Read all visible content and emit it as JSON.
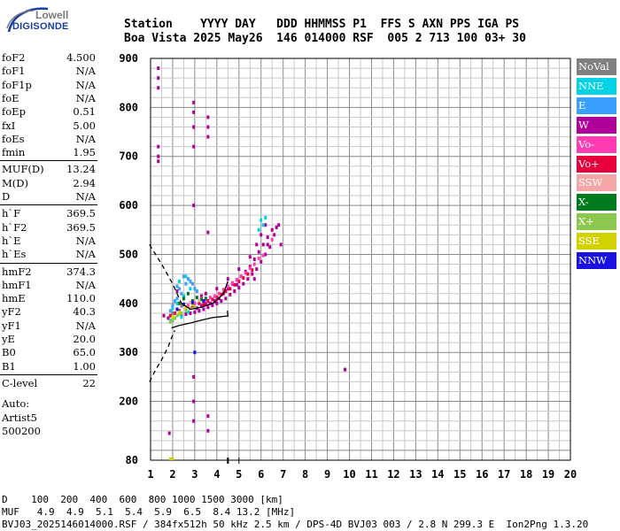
{
  "logo": {
    "line1": "Lowell",
    "line2": "DIGISONDE"
  },
  "header": {
    "line1": "Station    YYYY DAY   DDD HHMMSS P1  FFS S AXN PPS IGA PS",
    "line2": "Boa Vista 2025 May26  146 014000 RSF  005 2 713 100 03+ 30"
  },
  "params": [
    {
      "label": "foF2",
      "value": "4.500"
    },
    {
      "label": "foF1",
      "value": "N/A"
    },
    {
      "label": "foF1p",
      "value": "N/A"
    },
    {
      "label": "foE",
      "value": "N/A"
    },
    {
      "label": "foEp",
      "value": "0.51"
    },
    {
      "label": "fxI",
      "value": "5.00"
    },
    {
      "label": "foEs",
      "value": "N/A"
    },
    {
      "label": "fmin",
      "value": "1.95"
    },
    {
      "label": "MUF(D)",
      "value": "13.24"
    },
    {
      "label": "M(D)",
      "value": "2.94"
    },
    {
      "label": "D",
      "value": "N/A"
    },
    {
      "label": "h`F",
      "value": "369.5"
    },
    {
      "label": "h`F2",
      "value": "369.5"
    },
    {
      "label": "h`E",
      "value": "N/A"
    },
    {
      "label": "h`Es",
      "value": "N/A"
    },
    {
      "label": "hmF2",
      "value": "374.3"
    },
    {
      "label": "hmF1",
      "value": "N/A"
    },
    {
      "label": "hmE",
      "value": "110.0"
    },
    {
      "label": "yF2",
      "value": "40.3"
    },
    {
      "label": "yF1",
      "value": "N/A"
    },
    {
      "label": "yE",
      "value": "20.0"
    },
    {
      "label": "B0",
      "value": "65.0"
    },
    {
      "label": "B1",
      "value": "1.00"
    },
    {
      "label": "C-level",
      "value": "22"
    }
  ],
  "autoscale": {
    "line1": "Auto:",
    "line2": "Artist5",
    "line3": "500200"
  },
  "legend": [
    {
      "label": "NoVal",
      "color": "#808080",
      "text": "#ffffff"
    },
    {
      "label": "NNE",
      "color": "#00d2e6",
      "text": "#ffffff"
    },
    {
      "label": "E",
      "color": "#3aa0ff",
      "text": "#ffffff"
    },
    {
      "label": "W",
      "color": "#b0009a",
      "text": "#ffffff"
    },
    {
      "label": "Vo-",
      "color": "#ff3cb4",
      "text": "#ffffff"
    },
    {
      "label": "Vo+",
      "color": "#e8003c",
      "text": "#ffffff"
    },
    {
      "label": "SSW",
      "color": "#f4a6a6",
      "text": "#ffffff"
    },
    {
      "label": "X-",
      "color": "#007a1e",
      "text": "#ffffff"
    },
    {
      "label": "X+",
      "color": "#8cc850",
      "text": "#ffffff"
    },
    {
      "label": "SSE",
      "color": "#d2d200",
      "text": "#ffffff"
    },
    {
      "label": "NNW",
      "color": "#1a10e0",
      "text": "#ffffff"
    }
  ],
  "footer": {
    "line1": "D    100  200  400  600  800 1000 1500 3000 [km]",
    "line2": "MUF   4.9  4.9  5.1  5.4  5.9  6.5  8.4 13.2 [MHz]",
    "line3": "BVJ03_2025146014000.RSF / 384fx512h 50 kHz 2.5 km / DPS-4D BVJ03 003 / 2.8 N 299.3 E  Ion2Png 1.3.20"
  },
  "chart_data": {
    "type": "scatter",
    "title": "",
    "xlabel": "",
    "ylabel": "",
    "xlim": [
      1,
      20
    ],
    "ylim": [
      80,
      900
    ],
    "x_ticks": [
      "1",
      "2",
      "3",
      "4",
      "5",
      "6",
      "7",
      "8",
      "9",
      "10",
      "11",
      "12",
      "13",
      "14",
      "15",
      "16",
      "17",
      "18",
      "19",
      "20"
    ],
    "y_ticks": [
      "80",
      "200",
      "300",
      "400",
      "500",
      "600",
      "700",
      "800",
      "900"
    ],
    "grid": true,
    "grid_minor_x": 0.5,
    "grid_minor_y": 20,
    "markers": {
      "foF2_freq": 4.5,
      "fxI_freq": 5.0
    },
    "profile_solid": [
      [
        1.95,
        350
      ],
      [
        2.3,
        355
      ],
      [
        2.8,
        360
      ],
      [
        3.3,
        366
      ],
      [
        3.8,
        371
      ],
      [
        4.2,
        373
      ],
      [
        4.45,
        374.3
      ],
      [
        4.5,
        374.3
      ],
      [
        4.48,
        385
      ]
    ],
    "profile_dashed": [
      [
        0.95,
        240
      ],
      [
        1.2,
        262
      ],
      [
        1.5,
        285
      ],
      [
        1.8,
        312
      ],
      [
        1.95,
        330
      ],
      [
        2.1,
        345
      ]
    ],
    "trace_dashed": [
      [
        0.95,
        520
      ],
      [
        1.5,
        480
      ],
      [
        2.0,
        440
      ],
      [
        2.4,
        400
      ]
    ],
    "trace_solid": [
      [
        2.4,
        400
      ],
      [
        2.8,
        388
      ],
      [
        3.3,
        392
      ],
      [
        3.9,
        402
      ],
      [
        4.3,
        420
      ],
      [
        4.5,
        445
      ]
    ],
    "series": [
      {
        "name": "W",
        "color": "#b0009a",
        "points": [
          [
            3.1,
            390
          ],
          [
            3.3,
            395
          ],
          [
            3.5,
            398
          ],
          [
            3.7,
            400
          ],
          [
            3.9,
            405
          ],
          [
            4.1,
            410
          ],
          [
            4.3,
            420
          ],
          [
            4.5,
            430
          ],
          [
            4.7,
            440
          ],
          [
            4.9,
            448
          ],
          [
            5.1,
            455
          ],
          [
            5.3,
            465
          ],
          [
            5.5,
            475
          ],
          [
            5.7,
            490
          ],
          [
            5.9,
            505
          ],
          [
            6.1,
            520
          ],
          [
            6.3,
            535
          ],
          [
            6.5,
            550
          ],
          [
            6.6,
            540
          ],
          [
            6.4,
            515
          ],
          [
            6.2,
            500
          ],
          [
            6.0,
            485
          ],
          [
            5.8,
            470
          ],
          [
            5.6,
            460
          ],
          [
            5.4,
            450
          ],
          [
            5.2,
            440
          ],
          [
            5.0,
            432
          ],
          [
            4.8,
            425
          ],
          [
            4.6,
            418
          ],
          [
            4.4,
            410
          ],
          [
            4.2,
            405
          ],
          [
            4.0,
            400
          ],
          [
            3.8,
            396
          ],
          [
            3.6,
            392
          ],
          [
            3.4,
            388
          ],
          [
            3.2,
            385
          ],
          [
            3.0,
            382
          ],
          [
            2.8,
            380
          ],
          [
            2.6,
            378
          ],
          [
            2.4,
            376
          ],
          [
            6.7,
            555
          ],
          [
            6.8,
            560
          ],
          [
            6.0,
            540
          ],
          [
            6.2,
            560
          ],
          [
            5.8,
            520
          ],
          [
            5.5,
            495
          ],
          [
            5.0,
            470
          ],
          [
            4.5,
            450
          ],
          [
            4.0,
            430
          ],
          [
            3.5,
            420
          ],
          [
            1.35,
            880
          ],
          [
            1.35,
            860
          ],
          [
            1.35,
            840
          ],
          [
            1.35,
            720
          ],
          [
            1.35,
            700
          ],
          [
            1.35,
            690
          ],
          [
            2.95,
            810
          ],
          [
            2.95,
            790
          ],
          [
            2.95,
            760
          ],
          [
            2.95,
            720
          ],
          [
            3.6,
            780
          ],
          [
            3.6,
            760
          ],
          [
            3.6,
            740
          ],
          [
            2.95,
            600
          ],
          [
            2.95,
            250
          ],
          [
            2.95,
            200
          ],
          [
            2.95,
            160
          ],
          [
            3.6,
            140
          ],
          [
            3.6,
            170
          ],
          [
            9.8,
            265
          ],
          [
            1.85,
            135
          ],
          [
            3.6,
            545
          ],
          [
            2.2,
            425
          ],
          [
            1.6,
            375
          ],
          [
            1.8,
            370
          ],
          [
            5.7,
            450
          ],
          [
            6.3,
            520
          ],
          [
            6.9,
            520
          ],
          [
            4.9,
            438
          ],
          [
            3.3,
            415
          ]
        ]
      },
      {
        "name": "Vo+",
        "color": "#e8003c",
        "points": [
          [
            3.2,
            400
          ],
          [
            3.6,
            405
          ],
          [
            4.0,
            412
          ],
          [
            4.4,
            425
          ],
          [
            4.8,
            438
          ],
          [
            5.2,
            452
          ],
          [
            5.6,
            468
          ],
          [
            2.6,
            390
          ],
          [
            2.9,
            395
          ],
          [
            3.4,
            398
          ],
          [
            3.8,
            408
          ],
          [
            4.2,
            418
          ],
          [
            4.6,
            430
          ],
          [
            5.0,
            445
          ],
          [
            5.4,
            460
          ],
          [
            2.3,
            385
          ],
          [
            2.1,
            380
          ],
          [
            1.9,
            375
          ]
        ]
      },
      {
        "name": "Vo-",
        "color": "#ff3cb4",
        "points": [
          [
            3.3,
            410
          ],
          [
            3.7,
            412
          ],
          [
            4.1,
            420
          ],
          [
            4.5,
            435
          ],
          [
            4.9,
            448
          ],
          [
            5.3,
            462
          ],
          [
            5.7,
            480
          ],
          [
            6.1,
            498
          ],
          [
            6.5,
            530
          ],
          [
            2.7,
            395
          ],
          [
            3.0,
            400
          ],
          [
            3.5,
            405
          ],
          [
            3.9,
            415
          ],
          [
            4.3,
            428
          ],
          [
            4.7,
            442
          ],
          [
            5.1,
            455
          ],
          [
            5.5,
            472
          ],
          [
            5.9,
            492
          ]
        ]
      },
      {
        "name": "NNE",
        "color": "#00d2e6",
        "points": [
          [
            6.0,
            570
          ],
          [
            6.1,
            560
          ],
          [
            5.9,
            550
          ],
          [
            6.2,
            575
          ],
          [
            2.0,
            390
          ],
          [
            2.2,
            400
          ],
          [
            2.5,
            415
          ],
          [
            2.8,
            430
          ],
          [
            2.3,
            445
          ],
          [
            2.6,
            455
          ],
          [
            2.1,
            370
          ],
          [
            1.9,
            365
          ],
          [
            2.4,
            372
          ],
          [
            2.7,
            382
          ]
        ]
      },
      {
        "name": "E",
        "color": "#3aa0ff",
        "points": [
          [
            2.0,
            395
          ],
          [
            2.2,
            410
          ],
          [
            2.4,
            420
          ],
          [
            2.6,
            440
          ],
          [
            2.8,
            445
          ],
          [
            3.0,
            430
          ],
          [
            2.5,
            455
          ],
          [
            2.3,
            430
          ],
          [
            2.1,
            405
          ],
          [
            1.9,
            385
          ],
          [
            2.7,
            450
          ],
          [
            2.9,
            440
          ],
          [
            3.1,
            425
          ],
          [
            2.2,
            435
          ]
        ]
      },
      {
        "name": "X-",
        "color": "#007a1e",
        "points": [
          [
            2.5,
            410
          ],
          [
            2.9,
            405
          ],
          [
            3.3,
            408
          ],
          [
            2.7,
            420
          ],
          [
            3.1,
            412
          ],
          [
            3.5,
            410
          ],
          [
            2.3,
            400
          ]
        ]
      },
      {
        "name": "X+",
        "color": "#8cc850",
        "points": [
          [
            2.2,
            375
          ],
          [
            2.4,
            380
          ],
          [
            2.6,
            385
          ],
          [
            2.1,
            370
          ],
          [
            2.8,
            390
          ],
          [
            3.0,
            392
          ],
          [
            2.0,
            365
          ],
          [
            1.9,
            362
          ],
          [
            2.3,
            378
          ]
        ]
      },
      {
        "name": "SSE",
        "color": "#d2d200",
        "points": [
          [
            2.0,
            372
          ],
          [
            2.3,
            382
          ],
          [
            2.6,
            392
          ],
          [
            2.9,
            398
          ],
          [
            1.9,
            82
          ],
          [
            2.0,
            82
          ]
        ]
      },
      {
        "name": "SSW",
        "color": "#f4a6a6",
        "points": [
          [
            2.4,
            395
          ],
          [
            2.8,
            402
          ],
          [
            3.2,
            406
          ]
        ]
      },
      {
        "name": "NNW",
        "color": "#1a10e0",
        "points": [
          [
            2.5,
            398
          ],
          [
            2.9,
            402
          ],
          [
            3.4,
            405
          ],
          [
            2.2,
            388
          ],
          [
            3.0,
            300
          ]
        ]
      },
      {
        "name": "NoVal",
        "color": "#808080",
        "points": [
          [
            2.0,
            380
          ],
          [
            2.4,
            395
          ]
        ]
      }
    ]
  }
}
